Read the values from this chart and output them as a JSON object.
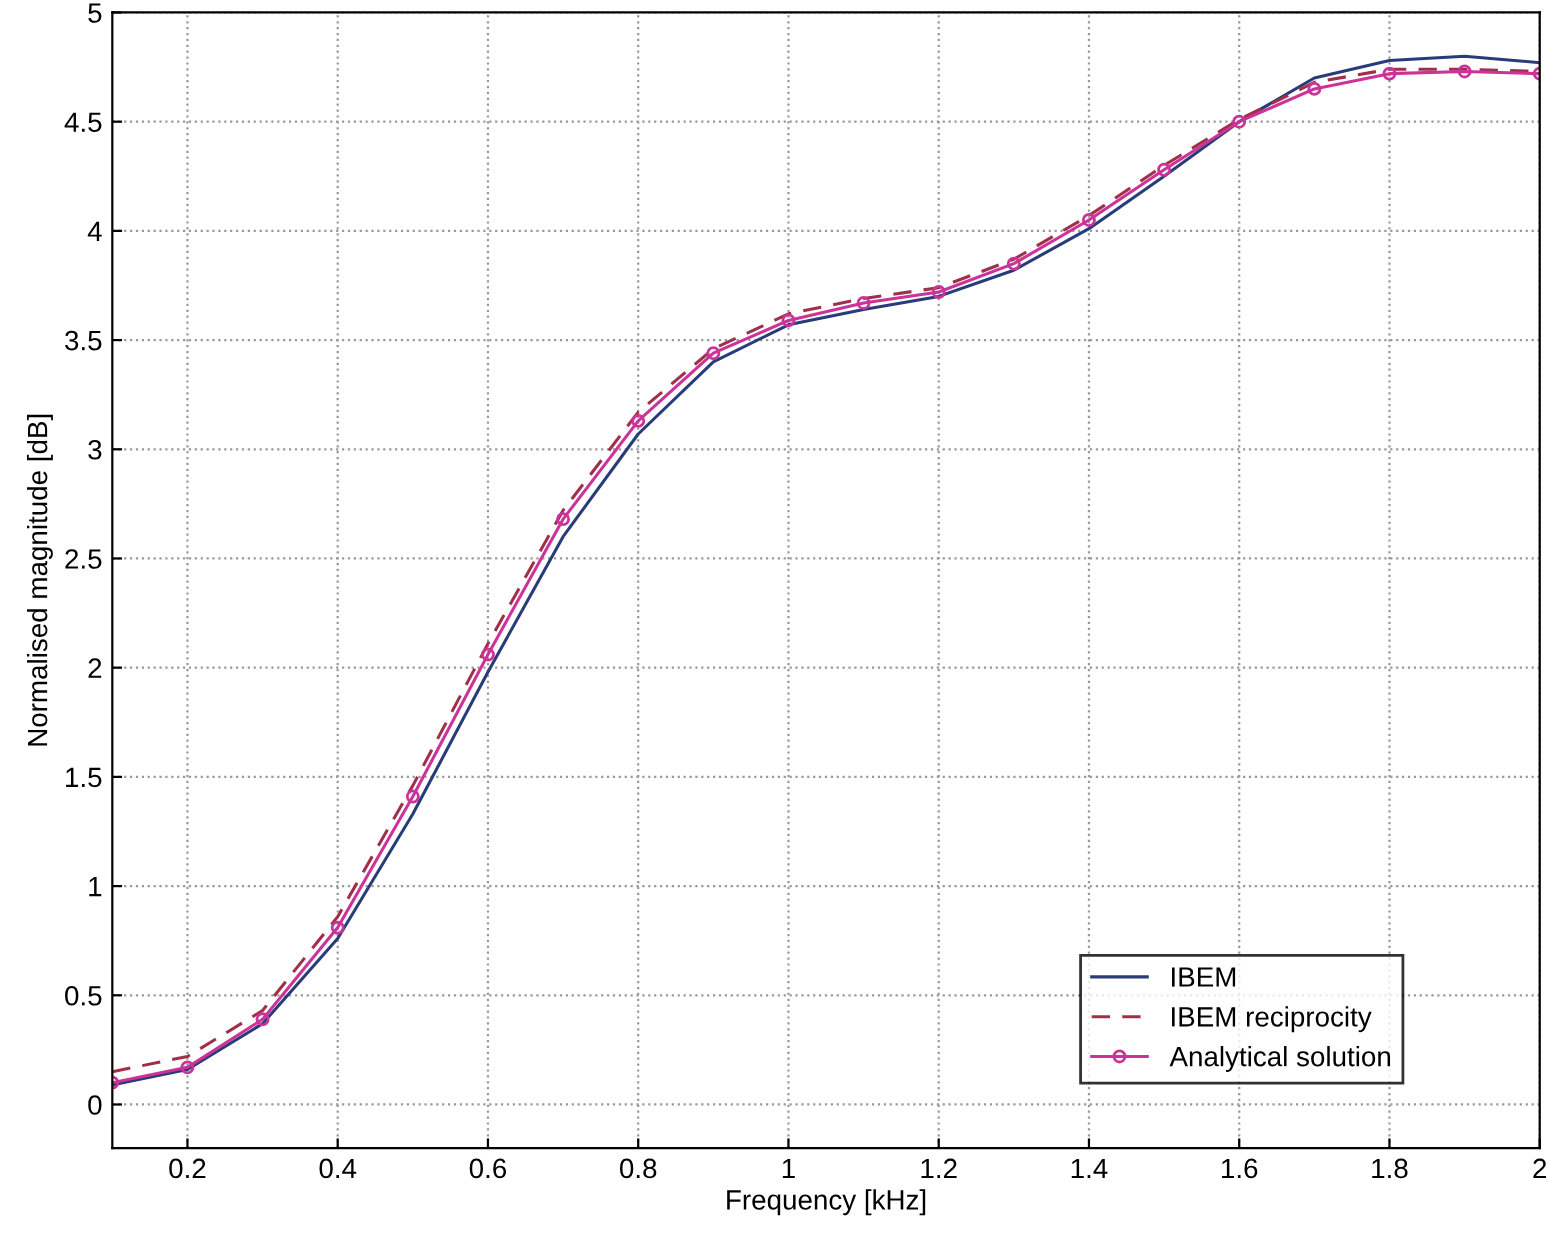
{
  "chart_data": {
    "type": "line",
    "xlabel": "Frequency [kHz]",
    "ylabel": "Normalised magnitude [dB]",
    "x": [
      0.1,
      0.2,
      0.3,
      0.4,
      0.5,
      0.6,
      0.7,
      0.8,
      0.9,
      1.0,
      1.1,
      1.2,
      1.3,
      1.4,
      1.5,
      1.6,
      1.7,
      1.8,
      1.9,
      2.0
    ],
    "series": [
      {
        "name": "IBEM",
        "color": "#283c78",
        "line_style": "solid",
        "marker": "none",
        "values": [
          0.09,
          0.16,
          0.37,
          0.76,
          1.33,
          1.98,
          2.6,
          3.07,
          3.4,
          3.57,
          3.64,
          3.7,
          3.82,
          4.01,
          4.25,
          4.5,
          4.7,
          4.78,
          4.8,
          4.77
        ]
      },
      {
        "name": "IBEM reciprocity",
        "color": "#a0304a",
        "line_style": "dashed",
        "marker": "none",
        "values": [
          0.15,
          0.22,
          0.43,
          0.86,
          1.46,
          2.11,
          2.72,
          3.17,
          3.46,
          3.62,
          3.69,
          3.74,
          3.87,
          4.07,
          4.3,
          4.51,
          4.68,
          4.74,
          4.74,
          4.73
        ]
      },
      {
        "name": "Analytical solution",
        "color": "#cc3399",
        "line_style": "solid",
        "marker": "circle",
        "values": [
          0.1,
          0.17,
          0.39,
          0.81,
          1.41,
          2.06,
          2.68,
          3.13,
          3.44,
          3.59,
          3.67,
          3.72,
          3.85,
          4.05,
          4.28,
          4.5,
          4.65,
          4.72,
          4.73,
          4.72
        ]
      }
    ],
    "xlim": [
      0.1,
      2
    ],
    "xticks": [
      0.2,
      0.4,
      0.6,
      0.8,
      1,
      1.2,
      1.4,
      1.6,
      1.8,
      2
    ],
    "ylim": [
      -0.2,
      5
    ],
    "yticks": [
      0,
      0.5,
      1,
      1.5,
      2,
      2.5,
      3,
      3.5,
      4,
      4.5,
      5
    ],
    "grid": true,
    "legend": "bottom right"
  }
}
